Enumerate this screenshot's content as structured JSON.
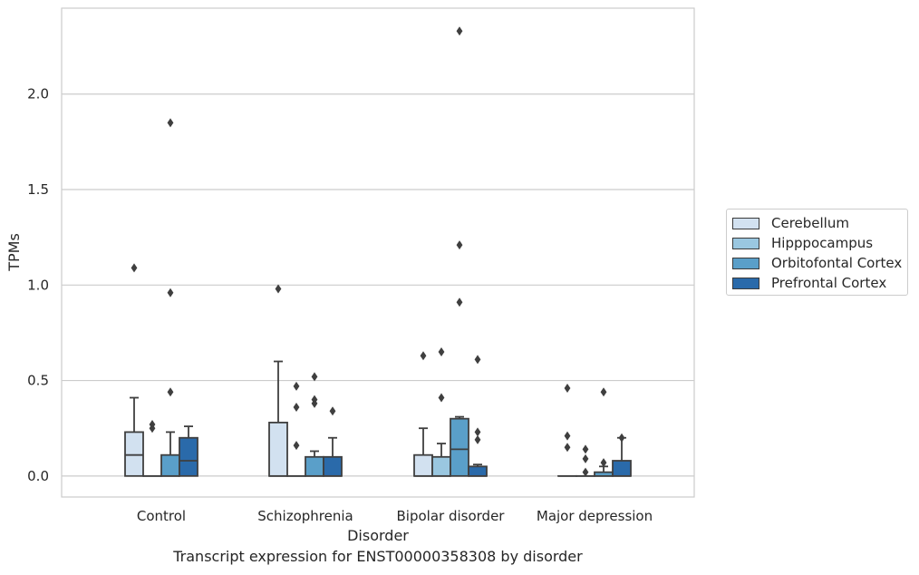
{
  "chart_data": {
    "type": "boxplot",
    "title": "",
    "caption": "Transcript expression for ENST00000358308 by disorder",
    "xlabel": "Disorder",
    "ylabel": "TPMs",
    "ylim": [
      -0.11,
      2.45
    ],
    "yticks": [
      0.0,
      0.5,
      1.0,
      1.5,
      2.0
    ],
    "ytick_labels": [
      "0.0",
      "0.5",
      "1.0",
      "1.5",
      "2.0"
    ],
    "grid": "horizontal",
    "legend_position": "right",
    "categories": [
      "Control",
      "Schizophrenia",
      "Bipolar disorder",
      "Major depression"
    ],
    "series": [
      {
        "name": "Cerebellum",
        "color": "#d2e1f0",
        "boxes": [
          {
            "min": 0.0,
            "q1": 0.0,
            "median": 0.11,
            "q3": 0.23,
            "max": 0.41,
            "outliers": [
              1.09
            ]
          },
          {
            "min": 0.0,
            "q1": 0.0,
            "median": 0.0,
            "q3": 0.28,
            "max": 0.6,
            "outliers": [
              0.98
            ]
          },
          {
            "min": 0.0,
            "q1": 0.0,
            "median": 0.0,
            "q3": 0.11,
            "max": 0.25,
            "outliers": [
              0.63
            ]
          },
          {
            "min": 0.0,
            "q1": 0.0,
            "median": 0.0,
            "q3": 0.0,
            "max": 0.0,
            "outliers": [
              0.46,
              0.21,
              0.15
            ]
          }
        ]
      },
      {
        "name": "Hipppocampus",
        "color": "#9ac7e0",
        "boxes": [
          {
            "min": 0.0,
            "q1": 0.0,
            "median": 0.0,
            "q3": 0.0,
            "max": 0.0,
            "outliers": [
              0.27,
              0.25
            ]
          },
          {
            "min": 0.0,
            "q1": 0.0,
            "median": 0.0,
            "q3": 0.0,
            "max": 0.0,
            "outliers": [
              0.47,
              0.36,
              0.16
            ]
          },
          {
            "min": 0.0,
            "q1": 0.0,
            "median": 0.0,
            "q3": 0.1,
            "max": 0.17,
            "outliers": [
              0.65,
              0.41
            ]
          },
          {
            "min": 0.0,
            "q1": 0.0,
            "median": 0.0,
            "q3": 0.0,
            "max": 0.0,
            "outliers": [
              0.14,
              0.09,
              0.02
            ]
          }
        ]
      },
      {
        "name": "Orbitofontal Cortex",
        "color": "#5a9fc9",
        "boxes": [
          {
            "min": 0.0,
            "q1": 0.0,
            "median": 0.0,
            "q3": 0.11,
            "max": 0.23,
            "outliers": [
              1.85,
              0.96,
              0.44
            ]
          },
          {
            "min": 0.0,
            "q1": 0.0,
            "median": 0.0,
            "q3": 0.1,
            "max": 0.13,
            "outliers": [
              0.52,
              0.4,
              0.38
            ]
          },
          {
            "min": 0.0,
            "q1": 0.0,
            "median": 0.14,
            "q3": 0.3,
            "max": 0.31,
            "outliers": [
              2.33,
              1.21,
              0.91
            ]
          },
          {
            "min": 0.0,
            "q1": 0.0,
            "median": 0.0,
            "q3": 0.02,
            "max": 0.05,
            "outliers": [
              0.44,
              0.07
            ]
          }
        ]
      },
      {
        "name": "Prefrontal Cortex",
        "color": "#2a6aaa",
        "boxes": [
          {
            "min": 0.0,
            "q1": 0.0,
            "median": 0.08,
            "q3": 0.2,
            "max": 0.26,
            "outliers": []
          },
          {
            "min": 0.0,
            "q1": 0.0,
            "median": 0.0,
            "q3": 0.1,
            "max": 0.2,
            "outliers": [
              0.34
            ]
          },
          {
            "min": 0.0,
            "q1": 0.0,
            "median": 0.0,
            "q3": 0.05,
            "max": 0.06,
            "outliers": [
              0.61,
              0.23,
              0.19
            ]
          },
          {
            "min": 0.0,
            "q1": 0.0,
            "median": 0.0,
            "q3": 0.08,
            "max": 0.2,
            "outliers": [
              0.2
            ]
          }
        ]
      }
    ]
  },
  "colors": {
    "grid": "#cccccc",
    "frame": "#cccccc",
    "box_edge": "#3f3f3f",
    "outlier": "#3f3f3f"
  }
}
